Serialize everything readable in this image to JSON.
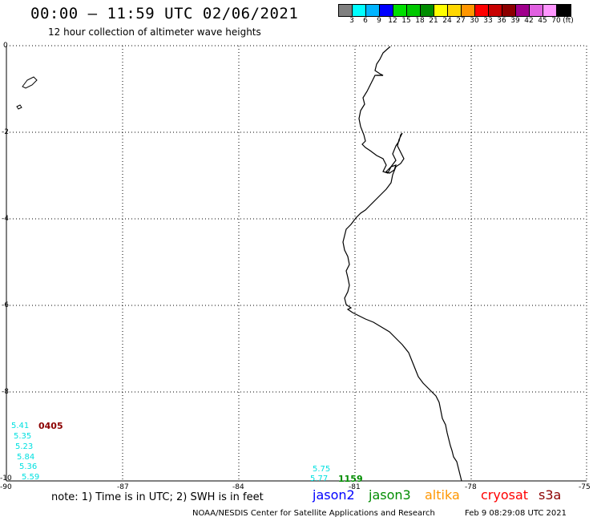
{
  "header": {
    "title": "00:00 — 11:59 UTC 02/06/2021",
    "subtitle": "12 hour collection of altimeter wave heights"
  },
  "legend": {
    "unit_label": "(ft)",
    "bins": [
      {
        "label": "3",
        "color": "#808080"
      },
      {
        "label": "6",
        "color": "#00ffff"
      },
      {
        "label": "9",
        "color": "#00b4ff"
      },
      {
        "label": "12",
        "color": "#0000ff"
      },
      {
        "label": "15",
        "color": "#00e000"
      },
      {
        "label": "18",
        "color": "#00c800"
      },
      {
        "label": "21",
        "color": "#008c00"
      },
      {
        "label": "24",
        "color": "#ffff00"
      },
      {
        "label": "27",
        "color": "#ffd700"
      },
      {
        "label": "30",
        "color": "#ff9600"
      },
      {
        "label": "33",
        "color": "#ff0000"
      },
      {
        "label": "36",
        "color": "#c80000"
      },
      {
        "label": "39",
        "color": "#8c0000"
      },
      {
        "label": "42",
        "color": "#a0008c"
      },
      {
        "label": "45",
        "color": "#e060e0"
      },
      {
        "label": "70",
        "color": "#ff96ff"
      },
      {
        "label": "",
        "color": "#000000"
      }
    ]
  },
  "axes": {
    "lat_labels": [
      "0",
      "-2",
      "-4",
      "-6",
      "-8",
      "-10"
    ],
    "lon_labels": [
      "-90",
      "-87",
      "-84",
      "-81",
      "-78",
      "-75"
    ]
  },
  "observations": {
    "group_left": {
      "time": "0405",
      "time_color": "#8c0000",
      "values": [
        "5.41",
        "5.35",
        "5.23",
        "5.84",
        "5.36",
        "5.59"
      ],
      "color": "#00e0e0"
    },
    "group_right": {
      "time": "1159",
      "time_color": "#008c00",
      "values": [
        "5.75",
        "5.77"
      ],
      "color": "#00e0e0"
    }
  },
  "note": "note:  1) Time is in UTC;  2) SWH is in feet",
  "satellites": [
    {
      "name": "jason2",
      "color": "#0000ff"
    },
    {
      "name": "jason3",
      "color": "#008c00"
    },
    {
      "name": "altika",
      "color": "#ff9600"
    },
    {
      "name": "cryosat",
      "color": "#ff0000"
    },
    {
      "name": "s3a",
      "color": "#8c0000"
    }
  ],
  "footer": {
    "credit": "NOAA/NESDIS Center for Satellite Applications and Research",
    "generated": "Feb  9 08:29:08 UTC 2021"
  }
}
